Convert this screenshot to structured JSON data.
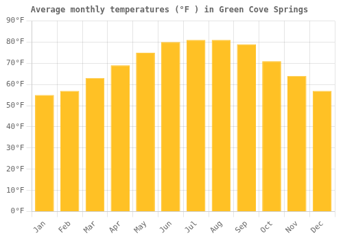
{
  "chart_data": {
    "type": "bar",
    "title": "Average monthly temperatures (°F ) in Green Cove Springs",
    "categories": [
      "Jan",
      "Feb",
      "Mar",
      "Apr",
      "May",
      "Jun",
      "Jul",
      "Aug",
      "Sep",
      "Oct",
      "Nov",
      "Dec"
    ],
    "values": [
      55,
      57,
      63,
      69,
      75,
      80,
      81,
      81,
      79,
      71,
      64,
      57
    ],
    "color": "#FFC125",
    "ylim": [
      0,
      90
    ],
    "yticks": [
      {
        "value": 0,
        "label": "0°F"
      },
      {
        "value": 10,
        "label": "10°F"
      },
      {
        "value": 20,
        "label": "20°F"
      },
      {
        "value": 30,
        "label": "30°F"
      },
      {
        "value": 40,
        "label": "40°F"
      },
      {
        "value": 50,
        "label": "50°F"
      },
      {
        "value": 60,
        "label": "60°F"
      },
      {
        "value": 70,
        "label": "70°F"
      },
      {
        "value": 80,
        "label": "80°F"
      },
      {
        "value": 90,
        "label": "90°F"
      }
    ],
    "grid": true
  }
}
